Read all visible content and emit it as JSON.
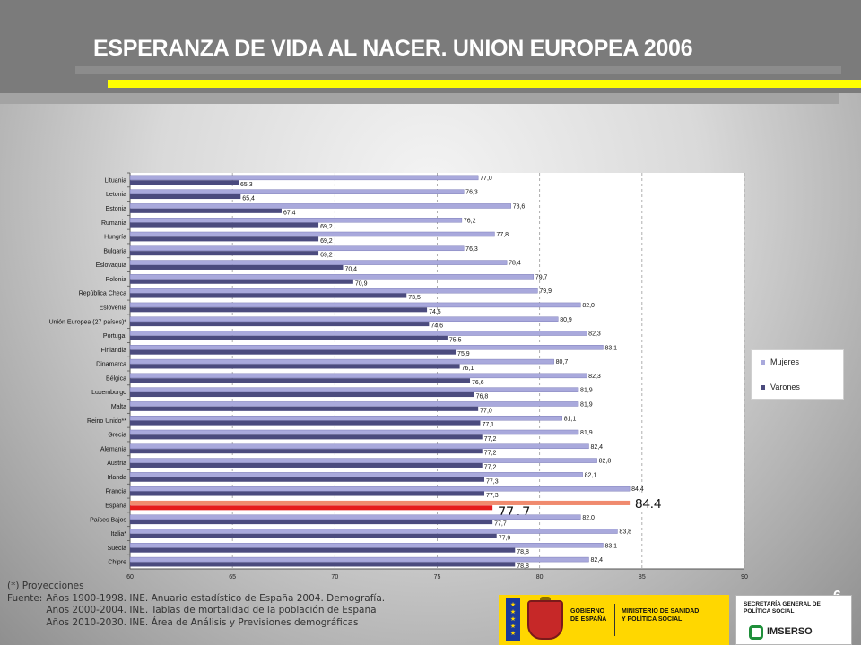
{
  "slide": {
    "title": "ESPERANZA DE VIDA AL NACER. UNION EUROPEA 2006",
    "page_number": "6",
    "footnote_line1": "(*) Proyecciones",
    "footnote_source_label": "Fuente:",
    "footnote_source_lines": [
      "Años 1900-1998. INE. Anuario estadístico de España 2004. Demografía.",
      "Años 2000-2004. INE. Tablas de mortalidad de la población de España",
      "Años 2010-2030. INE. Área de Análisis y Previsiones demográficas"
    ]
  },
  "logos": {
    "gobierno": "GOBIERNO DE ESPAÑA",
    "ministerio": "MINISTERIO DE SANIDAD Y POLÍTICA SOCIAL",
    "secretaria": "SECRETARÍA GENERAL DE POLÍTICA SOCIAL",
    "imserso": "IMSERSO"
  },
  "colors": {
    "mujeres": "#a9a9dc",
    "varones": "#4b4b7e",
    "highlight_mujeres": "#f08a6e",
    "highlight_varones": "#e51c1c",
    "accent_yellow": "#ffff00"
  },
  "chart_data": {
    "type": "bar",
    "orientation": "horizontal",
    "xlim": [
      60,
      90
    ],
    "x_ticks": [
      "60",
      "65",
      "70",
      "75",
      "80",
      "85",
      "90"
    ],
    "grid": "vertical dashed",
    "legend_position": "right",
    "categories": [
      "Lituania",
      "Letonia",
      "Estonia",
      "Rumania",
      "Hungría",
      "Bulgaria",
      "Eslovaquia",
      "Polonia",
      "República Checa",
      "Eslovenia",
      "Unión Europea (27 países)*",
      "Portugal",
      "Finlandia",
      "Dinamarca",
      "Bélgica",
      "Luxemburgo",
      "Malta",
      "Reino Unido**",
      "Grecia",
      "Alemania",
      "Austria",
      "Irlanda",
      "Francia",
      "España",
      "Países Bajos",
      "Italia*",
      "Suecia",
      "Chipre"
    ],
    "series": [
      {
        "name": "Mujeres",
        "values": [
          77.0,
          76.3,
          78.6,
          76.2,
          77.8,
          76.3,
          78.4,
          79.7,
          79.9,
          82.0,
          80.9,
          82.3,
          83.1,
          80.7,
          82.3,
          81.9,
          81.9,
          81.1,
          81.9,
          82.4,
          82.8,
          82.1,
          84.4,
          84.4,
          82.0,
          83.8,
          83.1,
          82.4
        ],
        "labels": [
          "77,0",
          "76,3",
          "78,6",
          "76,2",
          "77,8",
          "76,3",
          "78,4",
          "79,7",
          "79,9",
          "82,0",
          "80,9",
          "82,3",
          "83,1",
          "80,7",
          "82,3",
          "81,9",
          "81,9",
          "81,1",
          "81,9",
          "82,4",
          "82,8",
          "82,1",
          "84,4",
          "84.4",
          "82,0",
          "83,8",
          "83,1",
          "82,4"
        ]
      },
      {
        "name": "Varones",
        "values": [
          65.3,
          65.4,
          67.4,
          69.2,
          69.2,
          69.2,
          70.4,
          70.9,
          73.5,
          74.5,
          74.6,
          75.5,
          75.9,
          76.1,
          76.6,
          76.8,
          77.0,
          77.1,
          77.2,
          77.2,
          77.2,
          77.3,
          77.3,
          77.7,
          77.7,
          77.9,
          78.8,
          78.8
        ],
        "labels": [
          "65,3",
          "65,4",
          "67,4",
          "69,2",
          "69,2",
          "69,2",
          "70,4",
          "70,9",
          "73,5",
          "74,5",
          "74,6",
          "75,5",
          "75,9",
          "76,1",
          "76,6",
          "76,8",
          "77,0",
          "77,1",
          "77,2",
          "77,2",
          "77,2",
          "77,3",
          "77,3",
          "77,7",
          "77,7",
          "77,9",
          "78,8",
          "78,8"
        ]
      }
    ],
    "highlight_category": "España"
  }
}
